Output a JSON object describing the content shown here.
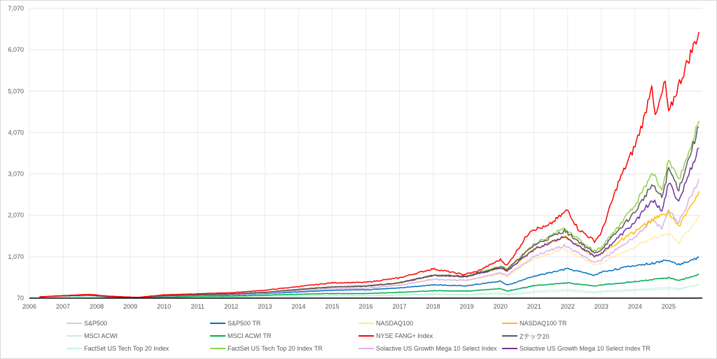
{
  "chart_data": {
    "type": "line",
    "title": "",
    "xlabel": "",
    "ylabel": "",
    "x_ticks": [
      "2006",
      "2007",
      "2008",
      "2009",
      "2010",
      "2011",
      "2012",
      "2013",
      "2014",
      "2015",
      "2016",
      "2017",
      "2018",
      "2019",
      "2020",
      "2021",
      "2022",
      "2023",
      "2024",
      "2025"
    ],
    "y_ticks": [
      "70",
      "1,070",
      "2,070",
      "3,070",
      "4,070",
      "5,070",
      "6,070",
      "7,070"
    ],
    "xlim": [
      2006.0,
      2026.0
    ],
    "ylim": [
      70,
      7070
    ],
    "grid": "vertical-and-horizontal",
    "legend_position": "bottom",
    "series": [
      {
        "name": "S&P500",
        "color": "#bdd7ee",
        "width": 1.1,
        "x": [
          2006.3,
          2007.0,
          2007.8,
          2008.3,
          2009.2,
          2010.0,
          2011.0,
          2012.0,
          2013.0,
          2014.0,
          2015.0,
          2016.0,
          2017.0,
          2018.0,
          2019.0,
          2020.0,
          2020.2,
          2021.0,
          2022.0,
          2022.8,
          2023.0,
          2024.0,
          2025.0,
          2025.3,
          2025.9
        ],
        "y": [
          100,
          120,
          130,
          105,
          80,
          100,
          115,
          115,
          140,
          165,
          190,
          185,
          210,
          250,
          230,
          300,
          230,
          360,
          450,
          360,
          380,
          460,
          570,
          490,
          640
        ]
      },
      {
        "name": "S&P500 TR",
        "color": "#0070c0",
        "width": 1.5,
        "x": [
          2006.3,
          2007.0,
          2007.8,
          2008.3,
          2009.2,
          2010.0,
          2011.0,
          2012.0,
          2013.0,
          2014.0,
          2015.0,
          2016.0,
          2017.0,
          2018.0,
          2019.0,
          2020.0,
          2020.2,
          2021.0,
          2022.0,
          2022.8,
          2023.0,
          2024.0,
          2024.6,
          2025.0,
          2025.3,
          2025.9
        ],
        "y": [
          100,
          130,
          140,
          115,
          90,
          120,
          140,
          145,
          180,
          220,
          260,
          270,
          320,
          390,
          370,
          480,
          380,
          600,
          780,
          620,
          700,
          860,
          920,
          1000,
          880,
          1050
        ]
      },
      {
        "name": "NASDAQ100",
        "color": "#ffe699",
        "width": 1.1,
        "x": [
          2006.3,
          2007.0,
          2007.8,
          2008.3,
          2009.2,
          2010.0,
          2011.0,
          2012.0,
          2013.0,
          2014.0,
          2015.0,
          2016.0,
          2017.0,
          2018.0,
          2019.0,
          2020.0,
          2020.2,
          2021.0,
          2021.9,
          2022.8,
          2023.0,
          2024.0,
          2024.5,
          2025.0,
          2025.3,
          2025.9
        ],
        "y": [
          100,
          120,
          140,
          100,
          75,
          120,
          140,
          155,
          190,
          250,
          300,
          310,
          380,
          520,
          490,
          660,
          600,
          1020,
          1270,
          870,
          920,
          1320,
          1500,
          1650,
          1400,
          2050
        ]
      },
      {
        "name": "NASDAQ100 TR",
        "color": "#ffc000",
        "width": 1.5,
        "x": [
          2006.3,
          2007.0,
          2007.8,
          2008.3,
          2009.2,
          2010.0,
          2011.0,
          2012.0,
          2013.0,
          2014.0,
          2015.0,
          2016.0,
          2017.0,
          2018.0,
          2019.0,
          2020.0,
          2020.2,
          2021.0,
          2021.9,
          2022.8,
          2023.0,
          2024.0,
          2024.5,
          2025.0,
          2025.3,
          2025.9
        ],
        "y": [
          100,
          125,
          145,
          105,
          80,
          130,
          150,
          170,
          210,
          280,
          340,
          360,
          440,
          620,
          590,
          800,
          730,
          1250,
          1560,
          1080,
          1150,
          1680,
          1950,
          2150,
          1800,
          2650
        ]
      },
      {
        "name": "MSCI ACWI",
        "color": "#c6efe0",
        "width": 1.1,
        "x": [
          2006.3,
          2007.0,
          2007.8,
          2008.3,
          2009.2,
          2010.0,
          2011.0,
          2012.0,
          2013.0,
          2014.0,
          2015.0,
          2016.0,
          2017.0,
          2018.0,
          2019.0,
          2020.0,
          2020.2,
          2021.0,
          2022.0,
          2022.8,
          2023.0,
          2024.0,
          2025.0,
          2025.3,
          2025.9
        ],
        "y": [
          100,
          115,
          125,
          100,
          75,
          90,
          100,
          100,
          115,
          130,
          140,
          135,
          150,
          175,
          160,
          200,
          160,
          240,
          280,
          220,
          240,
          280,
          330,
          300,
          390
        ]
      },
      {
        "name": "MSCI ACWI TR",
        "color": "#00b050",
        "width": 1.5,
        "x": [
          2006.3,
          2007.0,
          2007.8,
          2008.3,
          2009.2,
          2010.0,
          2011.0,
          2012.0,
          2013.0,
          2014.0,
          2015.0,
          2016.0,
          2017.0,
          2018.0,
          2019.0,
          2020.0,
          2020.2,
          2021.0,
          2022.0,
          2022.8,
          2023.0,
          2024.0,
          2025.0,
          2025.3,
          2025.9
        ],
        "y": [
          100,
          120,
          130,
          105,
          80,
          100,
          115,
          120,
          140,
          165,
          180,
          180,
          210,
          250,
          240,
          300,
          240,
          370,
          440,
          360,
          390,
          470,
          560,
          500,
          640
        ]
      },
      {
        "name": "NYSE FANG+ Index",
        "color": "#ff0000",
        "width": 1.5,
        "x": [
          2006.3,
          2007.0,
          2007.8,
          2008.3,
          2009.2,
          2010.0,
          2011.0,
          2012.0,
          2013.0,
          2014.0,
          2015.0,
          2016.0,
          2017.0,
          2018.0,
          2018.9,
          2019.3,
          2020.0,
          2020.2,
          2020.9,
          2021.4,
          2022.0,
          2022.3,
          2022.8,
          2023.0,
          2023.5,
          2024.0,
          2024.3,
          2024.5,
          2024.6,
          2024.9,
          2025.0,
          2025.2,
          2025.9
        ],
        "y": [
          100,
          130,
          160,
          120,
          85,
          150,
          175,
          200,
          260,
          350,
          440,
          450,
          560,
          780,
          640,
          710,
          1000,
          860,
          1720,
          1800,
          2200,
          1750,
          1450,
          1650,
          2850,
          3750,
          4500,
          5300,
          4400,
          5300,
          4500,
          5000,
          6500
        ]
      },
      {
        "name": "Zテック20",
        "color": "#595959",
        "width": 1.5,
        "x": [
          2006.3,
          2007.0,
          2007.8,
          2008.3,
          2009.2,
          2010.0,
          2011.0,
          2012.0,
          2013.0,
          2014.0,
          2015.0,
          2016.0,
          2017.0,
          2018.0,
          2019.0,
          2020.0,
          2020.2,
          2021.0,
          2021.9,
          2022.8,
          2023.0,
          2024.0,
          2024.5,
          2024.8,
          2025.0,
          2025.3,
          2025.9
        ],
        "y": [
          100,
          125,
          145,
          105,
          80,
          130,
          150,
          170,
          210,
          280,
          340,
          360,
          440,
          620,
          600,
          830,
          760,
          1350,
          1700,
          1150,
          1250,
          2150,
          2800,
          2500,
          3200,
          2700,
          4200
        ]
      },
      {
        "name": "FactSet US Tech Top 20 Index",
        "color": "#c6f4e4",
        "width": 1.1,
        "x": [
          2006.3,
          2007.0,
          2007.8,
          2008.3,
          2009.2,
          2010.0,
          2011.0,
          2012.0,
          2013.0,
          2014.0,
          2015.0,
          2016.0,
          2017.0,
          2018.0,
          2019.0,
          2020.0,
          2020.2,
          2021.0,
          2022.0,
          2022.8,
          2023.0,
          2024.0,
          2025.0,
          2025.3,
          2025.9
        ],
        "y": [
          100,
          110,
          120,
          95,
          70,
          85,
          90,
          90,
          100,
          115,
          125,
          120,
          135,
          155,
          145,
          170,
          140,
          200,
          240,
          190,
          210,
          250,
          290,
          270,
          410
        ]
      },
      {
        "name": "FactSet US Tech Top 20 Index TR",
        "color": "#92d050",
        "width": 1.5,
        "x": [
          2006.3,
          2007.0,
          2007.8,
          2008.3,
          2009.2,
          2010.0,
          2011.0,
          2012.0,
          2013.0,
          2014.0,
          2015.0,
          2016.0,
          2017.0,
          2018.0,
          2019.0,
          2020.0,
          2020.2,
          2021.0,
          2021.9,
          2022.8,
          2023.0,
          2024.0,
          2024.5,
          2024.8,
          2025.0,
          2025.3,
          2025.9
        ],
        "y": [
          100,
          125,
          145,
          105,
          80,
          130,
          150,
          170,
          210,
          280,
          340,
          360,
          440,
          620,
          600,
          840,
          770,
          1380,
          1760,
          1200,
          1300,
          2300,
          3100,
          2700,
          3400,
          2900,
          4350
        ]
      },
      {
        "name": "Solactive US Growth Mega 10 Select Index",
        "color": "#d9b3e8",
        "width": 1.5,
        "x": [
          2006.3,
          2007.0,
          2007.8,
          2008.3,
          2009.2,
          2010.0,
          2011.0,
          2012.0,
          2013.0,
          2014.0,
          2015.0,
          2016.0,
          2017.0,
          2018.0,
          2019.0,
          2020.0,
          2020.2,
          2021.0,
          2021.9,
          2022.8,
          2023.0,
          2024.0,
          2024.5,
          2024.8,
          2025.0,
          2025.3,
          2025.9
        ],
        "y": [
          100,
          120,
          140,
          100,
          75,
          120,
          140,
          155,
          190,
          250,
          300,
          310,
          380,
          520,
          500,
          680,
          620,
          1080,
          1350,
          930,
          1000,
          1550,
          1950,
          1750,
          2200,
          1900,
          2950
        ]
      },
      {
        "name": "Solactive US Growth Mega 10 Select Index TR",
        "color": "#7030a0",
        "width": 1.5,
        "x": [
          2006.3,
          2007.0,
          2007.8,
          2008.3,
          2009.2,
          2010.0,
          2011.0,
          2012.0,
          2013.0,
          2014.0,
          2015.0,
          2016.0,
          2017.0,
          2018.0,
          2019.0,
          2020.0,
          2020.2,
          2021.0,
          2021.9,
          2022.8,
          2023.0,
          2024.0,
          2024.5,
          2024.8,
          2025.0,
          2025.3,
          2025.9
        ],
        "y": [
          100,
          125,
          145,
          105,
          80,
          130,
          150,
          170,
          210,
          280,
          340,
          360,
          440,
          620,
          590,
          800,
          730,
          1250,
          1560,
          1080,
          1150,
          1900,
          2450,
          2200,
          2850,
          2400,
          3700
        ]
      }
    ]
  }
}
